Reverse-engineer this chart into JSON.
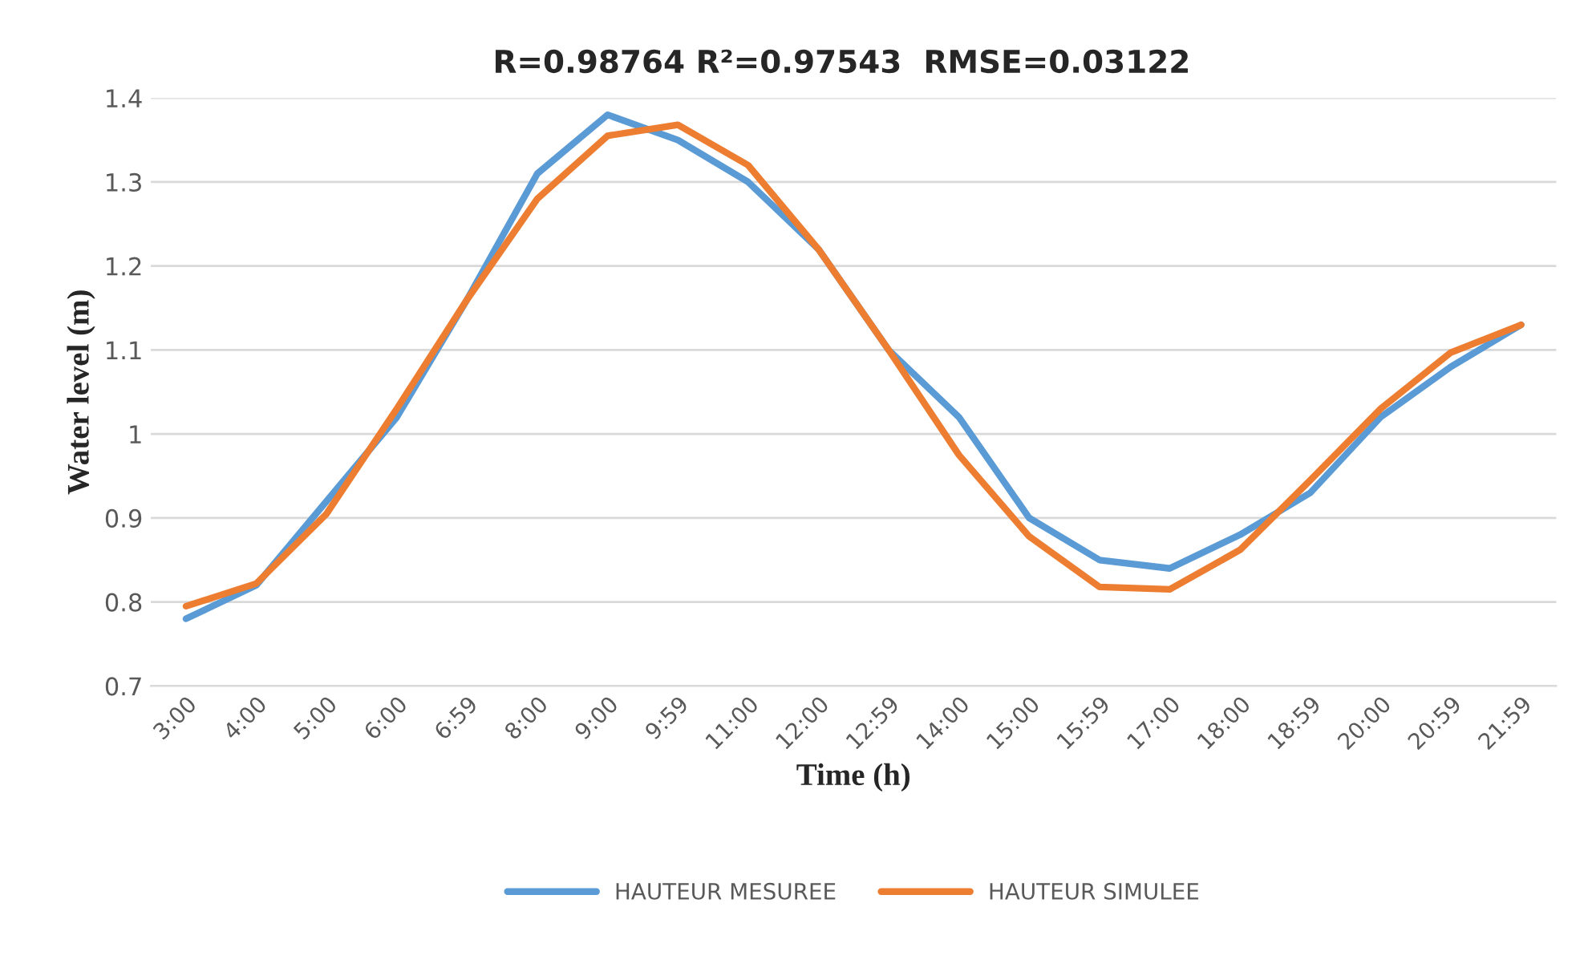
{
  "chart_data": {
    "type": "line",
    "title": "R=0.98764 R²=0.97543  RMSE=0.03122",
    "xlabel": "Time (h)",
    "ylabel": "Water level (m)",
    "categories": [
      "3:00",
      "4:00",
      "5:00",
      "6:00",
      "6:59",
      "8:00",
      "9:00",
      "9:59",
      "11:00",
      "12:00",
      "12:59",
      "14:00",
      "15:00",
      "15:59",
      "17:00",
      "18:00",
      "18:59",
      "20:00",
      "20:59",
      "21:59"
    ],
    "series": [
      {
        "name": "HAUTEUR MESUREE",
        "color": "#5b9bd5",
        "values": [
          0.78,
          0.82,
          0.92,
          1.02,
          1.16,
          1.31,
          1.38,
          1.35,
          1.3,
          1.22,
          1.1,
          1.02,
          0.9,
          0.85,
          0.84,
          0.88,
          0.93,
          1.02,
          1.08,
          1.13
        ]
      },
      {
        "name": "HAUTEUR SIMULEE",
        "color": "#ed7d31",
        "values": [
          0.795,
          0.822,
          0.905,
          1.03,
          1.16,
          1.28,
          1.355,
          1.368,
          1.32,
          1.22,
          1.1,
          0.975,
          0.878,
          0.818,
          0.815,
          0.862,
          0.945,
          1.03,
          1.097,
          1.13
        ]
      }
    ],
    "ylim": [
      0.7,
      1.4
    ],
    "yticks": [
      0.7,
      0.8,
      0.9,
      1,
      1.1,
      1.2,
      1.3,
      1.4
    ],
    "grid": "y",
    "legend": "bottom",
    "marker": "none",
    "line_style": "solid"
  }
}
